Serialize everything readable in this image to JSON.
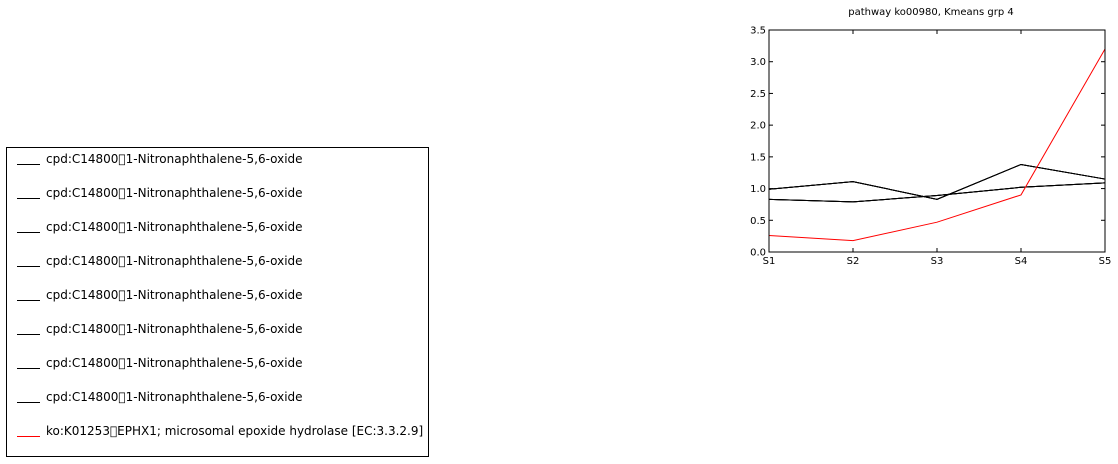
{
  "chart_data": {
    "type": "line",
    "title": "pathway ko00980, Kmeans grp 4",
    "xlabel": "",
    "ylabel": "",
    "categories": [
      "S1",
      "S2",
      "S3",
      "S4",
      "S5"
    ],
    "ylim": [
      0,
      3.5
    ],
    "yticks": [
      "0.0",
      "0.5",
      "1.0",
      "1.5",
      "2.0",
      "2.5",
      "3.0",
      "3.5"
    ],
    "grid": false,
    "legend_placement": "left, outside plot",
    "series": [
      {
        "name": "cpd:C14800\u00001-Nitronaphthalene-5,6-oxide",
        "color": "#000000",
        "values": [
          0.99,
          1.11,
          0.83,
          1.38,
          1.15
        ]
      },
      {
        "name": "cpd:C14800\u00001-Nitronaphthalene-5,6-oxide",
        "color": "#000000",
        "values": [
          0.99,
          1.11,
          0.83,
          1.38,
          1.15
        ]
      },
      {
        "name": "cpd:C14800\u00001-Nitronaphthalene-5,6-oxide",
        "color": "#000000",
        "values": [
          0.99,
          1.11,
          0.83,
          1.38,
          1.15
        ]
      },
      {
        "name": "cpd:C14800\u00001-Nitronaphthalene-5,6-oxide",
        "color": "#000000",
        "values": [
          0.99,
          1.11,
          0.83,
          1.38,
          1.15
        ]
      },
      {
        "name": "cpd:C14800\u00001-Nitronaphthalene-5,6-oxide",
        "color": "#000000",
        "values": [
          0.83,
          0.79,
          0.89,
          1.02,
          1.09
        ]
      },
      {
        "name": "cpd:C14800\u00001-Nitronaphthalene-5,6-oxide",
        "color": "#000000",
        "values": [
          0.83,
          0.79,
          0.89,
          1.02,
          1.09
        ]
      },
      {
        "name": "cpd:C14800\u00001-Nitronaphthalene-5,6-oxide",
        "color": "#000000",
        "values": [
          0.83,
          0.79,
          0.89,
          1.02,
          1.09
        ]
      },
      {
        "name": "cpd:C14800\u00001-Nitronaphthalene-5,6-oxide",
        "color": "#000000",
        "values": [
          0.83,
          0.79,
          0.89,
          1.02,
          1.09
        ]
      },
      {
        "name": "ko:K01253\u0000EPHX1; microsomal epoxide hydrolase [EC:3.3.2.9]",
        "color": "#ff0000",
        "values": [
          0.26,
          0.18,
          0.47,
          0.9,
          3.2
        ]
      }
    ]
  }
}
